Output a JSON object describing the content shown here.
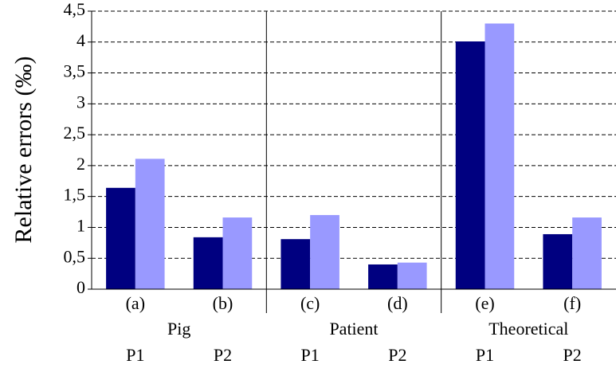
{
  "chart_data": {
    "type": "bar",
    "y_label": "Relative errors (‰)",
    "categories": [
      "(a)",
      "(b)",
      "(c)",
      "(d)",
      "(e)",
      "(f)"
    ],
    "groups": [
      "Pig",
      "Patient",
      "Theoretical"
    ],
    "subgroups": [
      "P1",
      "P2",
      "P1",
      "P2",
      "P1",
      "P2"
    ],
    "series": [
      {
        "color": "#000080",
        "values": [
          1.64,
          0.84,
          0.81,
          0.4,
          4.01,
          0.89
        ]
      },
      {
        "color": "#9999ff",
        "values": [
          2.11,
          1.16,
          1.2,
          0.43,
          4.3,
          1.16
        ]
      }
    ],
    "ylim": [
      0,
      4.5
    ],
    "yticks": [
      0,
      {
        "value": 0.5,
        "label": "0,5"
      },
      1,
      {
        "value": 1.5,
        "label": "1,5"
      },
      2,
      {
        "value": 2.5,
        "label": "2,5"
      },
      3,
      {
        "value": 3.5,
        "label": "3,5"
      },
      4,
      {
        "value": 4.5,
        "label": "4,5"
      }
    ],
    "grid": true
  }
}
